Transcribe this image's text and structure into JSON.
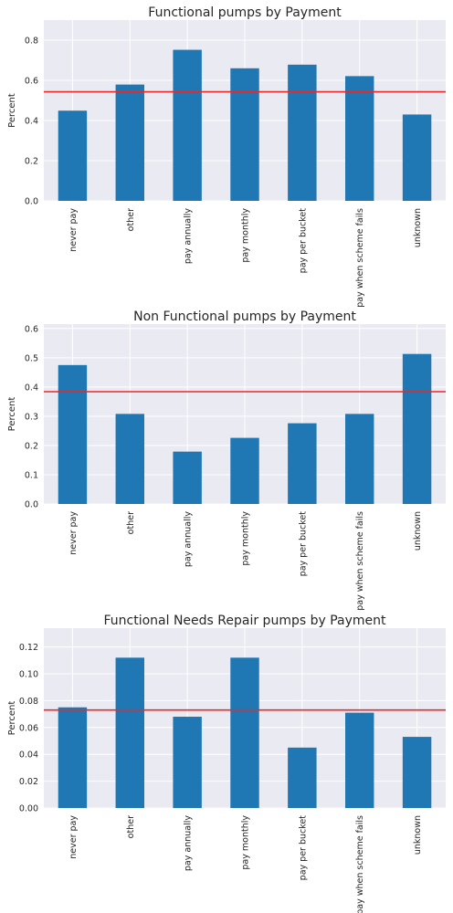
{
  "charts": [
    {
      "type": "bar",
      "title": "Functional pumps by Payment",
      "ylabel": "Percent",
      "categories": [
        "never pay",
        "other",
        "pay annually",
        "pay monthly",
        "pay per bucket",
        "pay when scheme fails",
        "unknown"
      ],
      "values": [
        0.449,
        0.579,
        0.752,
        0.66,
        0.678,
        0.621,
        0.43
      ],
      "reference_line": 0.543,
      "reference_color": "#E8282A",
      "bar_color": "#1F77B4",
      "ylim": [
        0,
        0.9
      ],
      "yticks": [
        0.0,
        0.2,
        0.4,
        0.6,
        0.8
      ],
      "ytick_labels": [
        "0.0",
        "0.2",
        "0.4",
        "0.6",
        "0.8"
      ],
      "grid": true
    },
    {
      "type": "bar",
      "title": "Non Functional pumps by Payment",
      "ylabel": "Percent",
      "categories": [
        "never pay",
        "other",
        "pay annually",
        "pay monthly",
        "pay per bucket",
        "pay when scheme fails",
        "unknown"
      ],
      "values": [
        0.475,
        0.308,
        0.179,
        0.226,
        0.276,
        0.308,
        0.513
      ],
      "reference_line": 0.384,
      "reference_color": "#E8282A",
      "bar_color": "#1F77B4",
      "ylim": [
        0,
        0.615
      ],
      "yticks": [
        0.0,
        0.1,
        0.2,
        0.3,
        0.4,
        0.5,
        0.6
      ],
      "ytick_labels": [
        "0.0",
        "0.1",
        "0.2",
        "0.3",
        "0.4",
        "0.5",
        "0.6"
      ],
      "grid": true
    },
    {
      "type": "bar",
      "title": "Functional Needs Repair pumps by Payment",
      "ylabel": "Percent",
      "categories": [
        "never pay",
        "other",
        "pay annually",
        "pay monthly",
        "pay per bucket",
        "pay when scheme fails",
        "unknown"
      ],
      "values": [
        0.075,
        0.112,
        0.068,
        0.112,
        0.045,
        0.071,
        0.053
      ],
      "reference_line": 0.073,
      "reference_color": "#E8282A",
      "bar_color": "#1F77B4",
      "ylim": [
        0,
        0.134
      ],
      "yticks": [
        0.0,
        0.02,
        0.04,
        0.06,
        0.08,
        0.1,
        0.12
      ],
      "ytick_labels": [
        "0.00",
        "0.02",
        "0.04",
        "0.06",
        "0.08",
        "0.10",
        "0.12"
      ],
      "grid": true
    }
  ]
}
